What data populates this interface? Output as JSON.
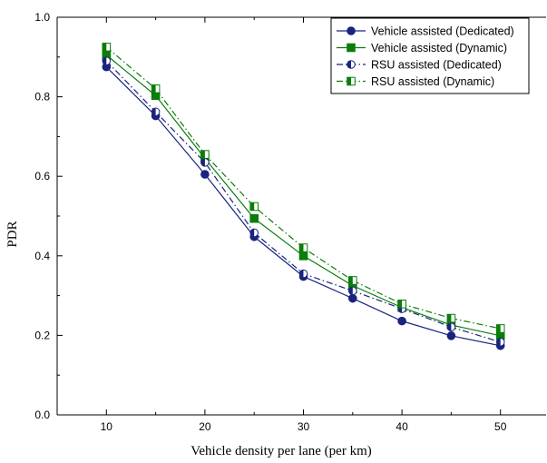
{
  "chart_data": {
    "type": "line",
    "title": "",
    "xlabel": "Vehicle density per lane (per km)",
    "ylabel": "PDR",
    "xlim": [
      5,
      55
    ],
    "ylim": [
      0.0,
      1.0
    ],
    "x_ticks": [
      "10",
      "20",
      "30",
      "40",
      "50"
    ],
    "y_ticks": [
      "0.0",
      "0.2",
      "0.4",
      "0.6",
      "0.8",
      "1.0"
    ],
    "grid": false,
    "legend_position": "top-right",
    "x": [
      10,
      15,
      20,
      25,
      30,
      35,
      40,
      45,
      50
    ],
    "series": [
      {
        "name": "Vehicle assisted (Dedicated)",
        "color": "#1a237e",
        "line_style": "solid",
        "marker": "filled-circle",
        "values": [
          0.875,
          0.752,
          0.605,
          0.448,
          0.348,
          0.293,
          0.236,
          0.199,
          0.174
        ]
      },
      {
        "name": "Vehicle assisted (Dynamic)",
        "color": "#0a7d0a",
        "line_style": "solid",
        "marker": "filled-square",
        "values": [
          0.905,
          0.803,
          0.645,
          0.494,
          0.4,
          0.325,
          0.27,
          0.226,
          0.199
        ]
      },
      {
        "name": "RSU assisted (Dedicated)",
        "color": "#1a237e",
        "line_style": "dash-dot",
        "marker": "half-circle",
        "values": [
          0.89,
          0.762,
          0.635,
          0.458,
          0.355,
          0.312,
          0.267,
          0.221,
          0.183
        ]
      },
      {
        "name": "RSU assisted (Dynamic)",
        "color": "#0a7d0a",
        "line_style": "dash-dot",
        "marker": "half-square",
        "values": [
          0.925,
          0.82,
          0.655,
          0.524,
          0.42,
          0.338,
          0.279,
          0.243,
          0.217
        ]
      }
    ]
  }
}
